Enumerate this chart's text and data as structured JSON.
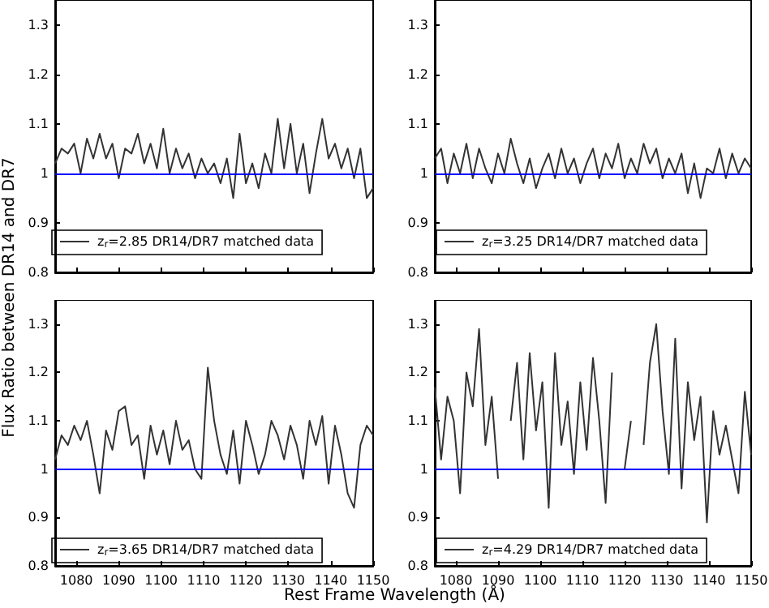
{
  "chart_data": [
    {
      "type": "line",
      "ylabel": "Flux Ratio between DR14 and DR7",
      "x": [
        1075,
        1076.5,
        1078,
        1079.5,
        1081,
        1082.5,
        1084,
        1085.5,
        1087,
        1088.5,
        1090,
        1091.5,
        1093,
        1094.5,
        1096,
        1097.5,
        1099,
        1100.5,
        1102,
        1103.5,
        1105,
        1106.5,
        1108,
        1109.5,
        1111,
        1112.5,
        1114,
        1115.5,
        1117,
        1118.5,
        1120,
        1121.5,
        1123,
        1124.5,
        1126,
        1127.5,
        1129,
        1130.5,
        1132,
        1133.5,
        1135,
        1136.5,
        1138,
        1139.5,
        1141,
        1142.5,
        1144,
        1145.5,
        1147,
        1148.5,
        1150
      ],
      "series": [
        {
          "name": "z$_{r}$=2.85 DR14/DR7 matched data",
          "color": "#333333",
          "values": [
            1.02,
            1.05,
            1.04,
            1.06,
            1.0,
            1.07,
            1.03,
            1.08,
            1.03,
            1.06,
            0.99,
            1.05,
            1.04,
            1.08,
            1.02,
            1.06,
            1.01,
            1.09,
            1.0,
            1.05,
            1.01,
            1.04,
            0.99,
            1.03,
            1.0,
            1.02,
            0.98,
            1.03,
            0.95,
            1.08,
            0.98,
            1.02,
            0.97,
            1.04,
            1.0,
            1.11,
            1.01,
            1.1,
            1.0,
            1.06,
            0.96,
            1.04,
            1.11,
            1.03,
            1.06,
            1.01,
            1.05,
            0.99,
            1.05,
            0.95,
            0.97
          ]
        }
      ],
      "xlim": [
        1075,
        1150
      ],
      "ylim": [
        0.8,
        1.35
      ],
      "xticks": [
        1080,
        1090,
        1100,
        1110,
        1120,
        1130,
        1140,
        1150
      ],
      "yticks": [
        0.8,
        0.9,
        1.0,
        1.1,
        1.2,
        1.3
      ],
      "ref_lines": [
        {
          "axis": "y",
          "value": 1.0,
          "color": "#0000ff"
        }
      ],
      "legend": "bottom left",
      "tick_labels": "y",
      "line_style": "solid"
    },
    {
      "type": "line",
      "x": [
        1075,
        1076.5,
        1078,
        1079.5,
        1081,
        1082.5,
        1084,
        1085.5,
        1087,
        1088.5,
        1090,
        1091.5,
        1093,
        1094.5,
        1096,
        1097.5,
        1099,
        1100.5,
        1102,
        1103.5,
        1105,
        1106.5,
        1108,
        1109.5,
        1111,
        1112.5,
        1114,
        1115.5,
        1117,
        1118.5,
        1120,
        1121.5,
        1123,
        1124.5,
        1126,
        1127.5,
        1129,
        1130.5,
        1132,
        1133.5,
        1135,
        1136.5,
        1138,
        1139.5,
        1141,
        1142.5,
        1144,
        1145.5,
        1147,
        1148.5,
        1150
      ],
      "series": [
        {
          "name": "z$_{r}$=3.25 DR14/DR7 matched data",
          "color": "#333333",
          "values": [
            1.03,
            1.05,
            0.98,
            1.04,
            1.0,
            1.06,
            0.99,
            1.05,
            1.01,
            0.98,
            1.04,
            1.0,
            1.07,
            1.02,
            0.98,
            1.03,
            0.97,
            1.01,
            1.04,
            0.99,
            1.05,
            1.0,
            1.03,
            0.98,
            1.02,
            1.05,
            0.99,
            1.04,
            1.01,
            1.06,
            0.99,
            1.03,
            1.0,
            1.06,
            1.02,
            1.05,
            0.99,
            1.03,
            1.0,
            1.04,
            0.96,
            1.02,
            0.95,
            1.01,
            1.0,
            1.05,
            0.99,
            1.04,
            1.0,
            1.03,
            1.01
          ]
        }
      ],
      "xlim": [
        1075,
        1150
      ],
      "ylim": [
        0.8,
        1.35
      ],
      "xticks": [
        1080,
        1090,
        1100,
        1110,
        1120,
        1130,
        1140,
        1150
      ],
      "yticks": [
        0.8,
        0.9,
        1.0,
        1.1,
        1.2,
        1.3
      ],
      "ref_lines": [
        {
          "axis": "y",
          "value": 1.0,
          "color": "#0000ff"
        }
      ],
      "legend": "bottom left",
      "tick_labels": "y",
      "line_style": "solid"
    },
    {
      "type": "line",
      "xlabel": "Rest Frame Wavelength (Å)",
      "x": [
        1075,
        1076.5,
        1078,
        1079.5,
        1081,
        1082.5,
        1084,
        1085.5,
        1087,
        1088.5,
        1090,
        1091.5,
        1093,
        1094.5,
        1096,
        1097.5,
        1099,
        1100.5,
        1102,
        1103.5,
        1105,
        1106.5,
        1108,
        1109.5,
        1111,
        1112.5,
        1114,
        1115.5,
        1117,
        1118.5,
        1120,
        1121.5,
        1123,
        1124.5,
        1126,
        1127.5,
        1129,
        1130.5,
        1132,
        1133.5,
        1135,
        1136.5,
        1138,
        1139.5,
        1141,
        1142.5,
        1144,
        1145.5,
        1147,
        1148.5,
        1150
      ],
      "series": [
        {
          "name": "z$_{r}$=3.65 DR14/DR7 matched data",
          "color": "#333333",
          "values": [
            1.02,
            1.07,
            1.05,
            1.09,
            1.06,
            1.1,
            1.03,
            0.95,
            1.08,
            1.04,
            1.12,
            1.13,
            1.05,
            1.07,
            0.98,
            1.09,
            1.03,
            1.08,
            1.01,
            1.1,
            1.04,
            1.06,
            1.0,
            0.98,
            1.21,
            1.1,
            1.03,
            0.99,
            1.08,
            0.97,
            1.1,
            1.05,
            0.99,
            1.03,
            1.1,
            1.07,
            1.02,
            1.09,
            1.05,
            0.98,
            1.1,
            1.05,
            1.11,
            0.97,
            1.09,
            1.03,
            0.95,
            0.92,
            1.05,
            1.09,
            1.07
          ]
        }
      ],
      "xlim": [
        1075,
        1150
      ],
      "ylim": [
        0.8,
        1.35
      ],
      "xticks": [
        1080,
        1090,
        1100,
        1110,
        1120,
        1130,
        1140,
        1150
      ],
      "yticks": [
        0.8,
        0.9,
        1.0,
        1.1,
        1.2,
        1.3
      ],
      "ref_lines": [
        {
          "axis": "y",
          "value": 1.0,
          "color": "#0000ff"
        }
      ],
      "legend": "bottom left",
      "line_style": "solid"
    },
    {
      "type": "line",
      "x": [
        1075,
        1076.5,
        1078,
        1079.5,
        1081,
        1082.5,
        1084,
        1085.5,
        1087,
        1088.5,
        1090,
        1091.5,
        1093,
        1094.5,
        1096,
        1097.5,
        1099,
        1100.5,
        1102,
        1103.5,
        1105,
        1106.5,
        1108,
        1109.5,
        1111,
        1112.5,
        1114,
        1115.5,
        1117,
        1118.5,
        1120,
        1121.5,
        1123,
        1124.5,
        1126,
        1127.5,
        1129,
        1130.5,
        1132,
        1133.5,
        1135,
        1136.5,
        1138,
        1139.5,
        1141,
        1142.5,
        1144,
        1145.5,
        1147,
        1148.5,
        1150
      ],
      "series": [
        {
          "name": "z$_{r}$=4.29 DR14/DR7 matched data",
          "color": "#333333",
          "values": [
            1.17,
            1.02,
            1.15,
            1.1,
            0.95,
            1.2,
            1.13,
            1.29,
            1.05,
            1.15,
            0.98,
            null,
            1.1,
            1.22,
            1.02,
            1.24,
            1.08,
            1.18,
            0.92,
            1.24,
            1.05,
            1.14,
            0.99,
            1.18,
            1.04,
            1.23,
            1.1,
            0.93,
            1.2,
            null,
            1.0,
            1.1,
            null,
            1.05,
            1.22,
            1.3,
            1.12,
            0.99,
            1.27,
            0.96,
            1.18,
            1.06,
            1.15,
            0.89,
            1.12,
            1.03,
            1.09,
            1.02,
            0.95,
            1.16,
            1.03
          ]
        }
      ],
      "xlim": [
        1075,
        1150
      ],
      "ylim": [
        0.8,
        1.35
      ],
      "xticks": [
        1080,
        1090,
        1100,
        1110,
        1120,
        1130,
        1140,
        1150
      ],
      "yticks": [
        0.8,
        0.9,
        1.0,
        1.1,
        1.2,
        1.3
      ],
      "ref_lines": [
        {
          "axis": "y",
          "value": 1.0,
          "color": "#0000ff"
        }
      ],
      "legend": "bottom left",
      "line_style": "solid"
    }
  ]
}
